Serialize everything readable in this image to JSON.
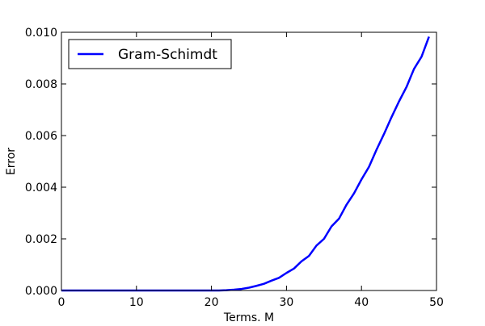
{
  "chart_data": {
    "type": "line",
    "title": "",
    "xlabel": "Terms. M",
    "ylabel": "Error",
    "xlim": [
      0,
      50
    ],
    "ylim": [
      0,
      0.01
    ],
    "x_ticks": [
      0,
      10,
      20,
      30,
      40,
      50
    ],
    "x_tick_labels": [
      "0",
      "10",
      "20",
      "30",
      "40",
      "50"
    ],
    "y_ticks": [
      0,
      0.002,
      0.004,
      0.006,
      0.008,
      0.01
    ],
    "y_tick_labels": [
      "0.000",
      "0.002",
      "0.004",
      "0.006",
      "0.008",
      "0.010"
    ],
    "grid": false,
    "legend": {
      "placement": "top-left",
      "entries": [
        "Gram-Schimdt"
      ]
    },
    "series": [
      {
        "name": "Gram-Schimdt",
        "color": "#0000ff",
        "x": [
          0,
          1,
          2,
          3,
          4,
          5,
          6,
          7,
          8,
          9,
          10,
          11,
          12,
          13,
          14,
          15,
          16,
          17,
          18,
          19,
          20,
          21,
          22,
          23,
          24,
          25,
          26,
          27,
          28,
          29,
          30,
          31,
          32,
          33,
          34,
          35,
          36,
          37,
          38,
          39,
          40,
          41,
          42,
          43,
          44,
          45,
          46,
          47,
          48,
          49
        ],
        "y": [
          0,
          0,
          0,
          0,
          0,
          0,
          0,
          0,
          0,
          0,
          0,
          0,
          0,
          0,
          0,
          0,
          0,
          0,
          0,
          0,
          0,
          1e-06,
          1e-05,
          3e-05,
          6e-05,
          0.00011,
          0.00018,
          0.00026,
          0.00038,
          0.00049,
          0.00068,
          0.00085,
          0.00113,
          0.00134,
          0.00174,
          0.002,
          0.00248,
          0.00278,
          0.00332,
          0.00376,
          0.0043,
          0.00479,
          0.00545,
          0.00606,
          0.00671,
          0.00732,
          0.00788,
          0.00858,
          0.00905,
          0.00983
        ]
      }
    ]
  }
}
